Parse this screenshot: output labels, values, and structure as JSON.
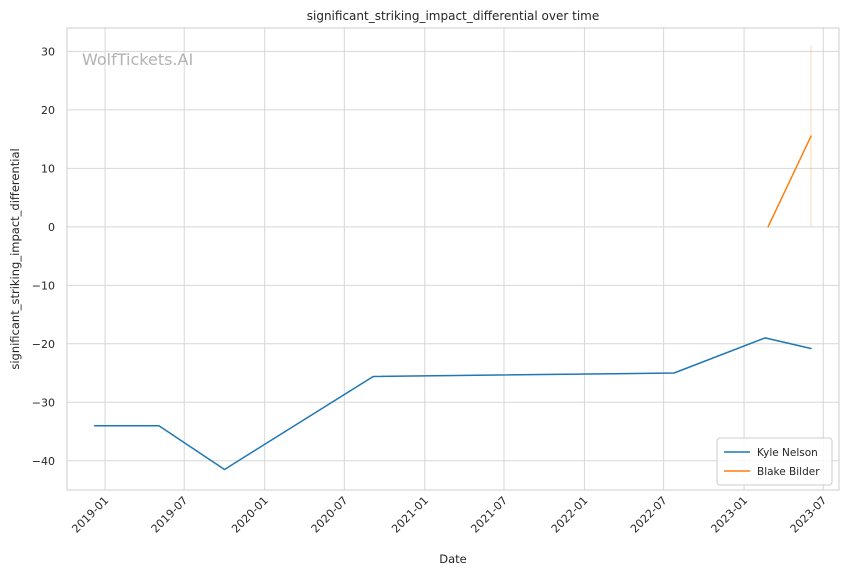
{
  "chart_data": {
    "type": "line",
    "title": "significant_striking_impact_differential over time",
    "xlabel": "Date",
    "ylabel": "significant_striking_impact_differential",
    "watermark": "WolfTickets.AI",
    "x_ticks": [
      "2019-01",
      "2019-07",
      "2020-01",
      "2020-07",
      "2021-01",
      "2021-07",
      "2022-01",
      "2022-07",
      "2023-01",
      "2023-07"
    ],
    "y_ticks": [
      "30",
      "20",
      "10",
      "0",
      "−10",
      "−20",
      "−30",
      "−40"
    ],
    "y_tick_values": [
      30,
      20,
      10,
      0,
      -10,
      -20,
      -30,
      -40
    ],
    "ylim": [
      -45,
      34
    ],
    "xlim": [
      "2018-10-06",
      "2023-08-06"
    ],
    "grid": true,
    "legend_position": "bottom-right",
    "series": [
      {
        "name": "Kyle Nelson",
        "color": "#1f77b4",
        "points": [
          {
            "x": "2018-12-08",
            "y": -34
          },
          {
            "x": "2019-05-04",
            "y": -34
          },
          {
            "x": "2019-10-01",
            "y": -41.5
          },
          {
            "x": "2020-09-05",
            "y": -25.6
          },
          {
            "x": "2022-07-25",
            "y": -25
          },
          {
            "x": "2023-02-18",
            "y": -19
          },
          {
            "x": "2023-06-03",
            "y": -20.8
          }
        ]
      },
      {
        "name": "Blake Bilder",
        "color": "#ff7f0e",
        "points": [
          {
            "x": "2023-02-25",
            "y": 0
          },
          {
            "x": "2023-06-03",
            "y": 15.5
          }
        ],
        "band": {
          "x": "2023-06-03",
          "low": 0,
          "high": 31
        }
      }
    ]
  }
}
